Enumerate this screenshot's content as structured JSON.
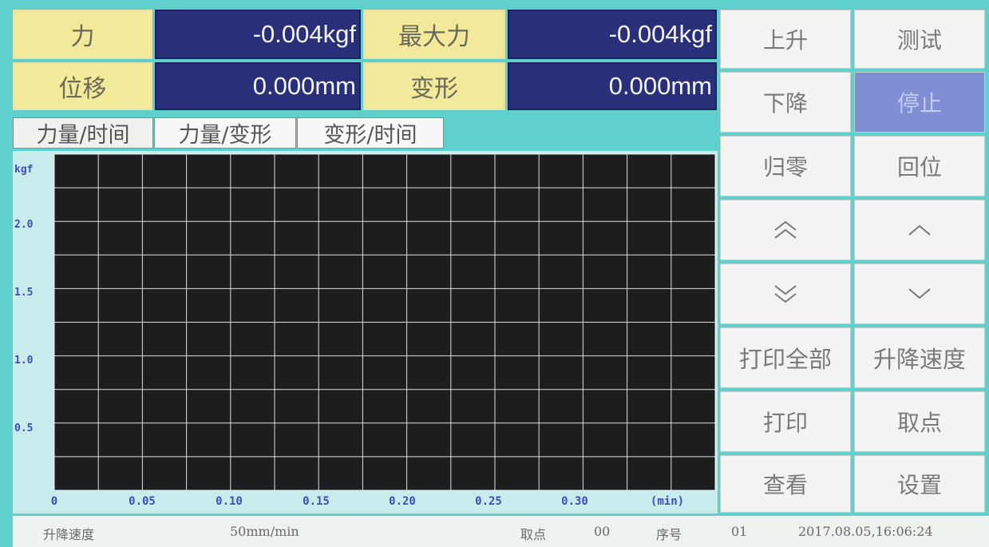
{
  "readouts": {
    "force_label": "力",
    "force_value": "-0.004kgf",
    "max_force_label": "最大力",
    "max_force_value": "-0.004kgf",
    "displacement_label": "位移",
    "displacement_value": "0.000mm",
    "deformation_label": "变形",
    "deformation_value": "0.000mm"
  },
  "tabs": [
    "力量/时间",
    "力量/变形",
    "变形/时间"
  ],
  "chart_data": {
    "type": "line",
    "ylabel": "kgf",
    "xlabel": "(min)",
    "y_ticks": [
      "2.0",
      "1.5",
      "1.0",
      "0.5"
    ],
    "x_ticks": [
      "0",
      "0.05",
      "0.10",
      "0.15",
      "0.20",
      "0.25",
      "0.30"
    ],
    "ylim": [
      0,
      2.4
    ],
    "xlim": [
      0,
      0.38
    ],
    "grid": true,
    "series": []
  },
  "buttons": {
    "up": "上升",
    "test": "测试",
    "down": "下降",
    "stop": "停止",
    "zero": "归零",
    "return": "回位",
    "print_all": "打印全部",
    "lift_speed": "升降速度",
    "print": "打印",
    "take_point": "取点",
    "view": "查看",
    "settings": "设置"
  },
  "icons": {
    "fast_up": "double-chevron-up-icon",
    "slow_up": "chevron-up-icon",
    "fast_down": "double-chevron-down-icon",
    "slow_down": "chevron-down-icon"
  },
  "status": {
    "speed_label": "升降速度",
    "speed_value": "50mm/min",
    "point_label": "取点",
    "point_value": "00",
    "seq_label": "序号",
    "seq_value": "01",
    "datetime": "2017.08.05,16:06:24"
  },
  "colors": {
    "panel": "#5fd0cc",
    "label_bg": "#f2ea9a",
    "value_bg": "#2a2f7a",
    "chart_bg": "#c7eceb",
    "grid": "#ffffff",
    "active_button": "#7f8fd6"
  }
}
